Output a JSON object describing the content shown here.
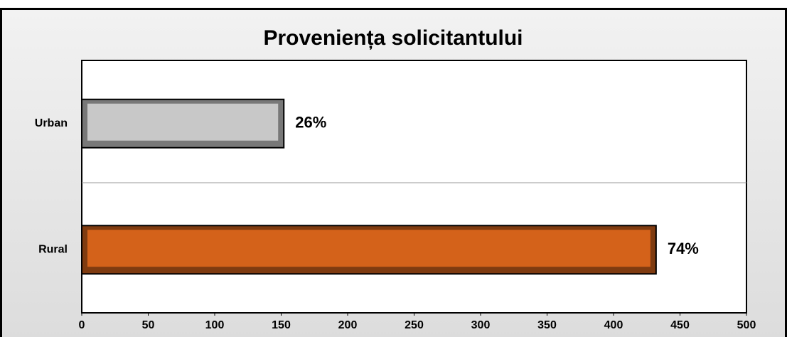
{
  "chart_data": {
    "type": "barh",
    "title": "Proveniența solicitantului",
    "categories": [
      "Urban",
      "Rural"
    ],
    "values": [
      152,
      432
    ],
    "value_labels": [
      "26%",
      "74%"
    ],
    "colors": [
      "#c8c8c8",
      "#d4621a"
    ],
    "xlim": [
      0,
      500
    ],
    "xticks": [
      0,
      50,
      100,
      150,
      200,
      250,
      300,
      350,
      400,
      450,
      500
    ]
  }
}
